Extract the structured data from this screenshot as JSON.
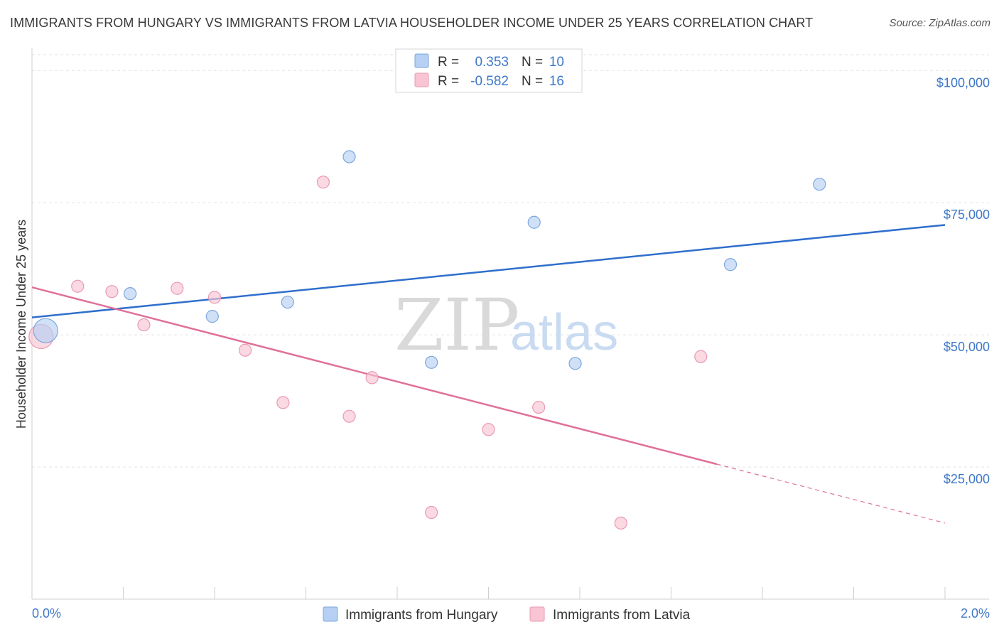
{
  "title": "IMMIGRANTS FROM HUNGARY VS IMMIGRANTS FROM LATVIA HOUSEHOLDER INCOME UNDER 25 YEARS CORRELATION CHART",
  "source": "Source: ZipAtlas.com",
  "watermark": {
    "zip": "ZIP",
    "atlas": "atlas"
  },
  "legend": {
    "rows": [
      {
        "r_label": "R =",
        "r_value": "0.353",
        "n_label": "N =",
        "n_value": "10",
        "color": "#b5d0f3",
        "stroke": "#7da7de"
      },
      {
        "r_label": "R =",
        "r_value": "-0.582",
        "n_label": "N =",
        "n_value": "16",
        "color": "#f9c5d4",
        "stroke": "#e99ab3"
      }
    ]
  },
  "chart_data": {
    "type": "scatter",
    "title": "IMMIGRANTS FROM HUNGARY VS IMMIGRANTS FROM LATVIA HOUSEHOLDER INCOME UNDER 25 YEARS CORRELATION CHART",
    "xlabel": "",
    "ylabel": "Householder Income Under 25 years",
    "xlim": [
      0.0,
      2.0
    ],
    "ylim": [
      0,
      103000
    ],
    "x_tick_labels": [
      "0.0%",
      "2.0%"
    ],
    "y_ticks": [
      25000,
      50000,
      75000,
      100000
    ],
    "y_tick_labels": [
      "$25,000",
      "$50,000",
      "$75,000",
      "$100,000"
    ],
    "grid": true,
    "legend_position": "top-center",
    "series": [
      {
        "name": "Immigrants from Hungary",
        "color": "#b5d0f3",
        "stroke": "#7da7de",
        "line_color": "#2f6fcc",
        "points": [
          {
            "x": 0.03,
            "y": 50800,
            "size": "large"
          },
          {
            "x": 0.215,
            "y": 57800
          },
          {
            "x": 0.395,
            "y": 53500
          },
          {
            "x": 0.56,
            "y": 56200
          },
          {
            "x": 0.695,
            "y": 83700
          },
          {
            "x": 0.875,
            "y": 44800
          },
          {
            "x": 1.1,
            "y": 71300
          },
          {
            "x": 1.19,
            "y": 44600
          },
          {
            "x": 1.53,
            "y": 63300
          },
          {
            "x": 1.725,
            "y": 78500
          }
        ],
        "trend": {
          "x": [
            0.0,
            2.0
          ],
          "y": [
            53300,
            70800
          ],
          "dashed_from": null
        }
      },
      {
        "name": "Immigrants from Latvia",
        "color": "#f9c5d4",
        "stroke": "#e99ab3",
        "line_color": "#e0709a",
        "points": [
          {
            "x": 0.02,
            "y": 49700,
            "size": "large"
          },
          {
            "x": 0.1,
            "y": 59200
          },
          {
            "x": 0.175,
            "y": 58200
          },
          {
            "x": 0.245,
            "y": 51900
          },
          {
            "x": 0.318,
            "y": 58800
          },
          {
            "x": 0.4,
            "y": 57100
          },
          {
            "x": 0.467,
            "y": 47100
          },
          {
            "x": 0.55,
            "y": 37200
          },
          {
            "x": 0.638,
            "y": 78900
          },
          {
            "x": 0.695,
            "y": 34600
          },
          {
            "x": 0.745,
            "y": 41900
          },
          {
            "x": 0.875,
            "y": 16400
          },
          {
            "x": 1.0,
            "y": 32100
          },
          {
            "x": 1.11,
            "y": 36300
          },
          {
            "x": 1.29,
            "y": 14400
          },
          {
            "x": 1.465,
            "y": 45900
          }
        ],
        "trend": {
          "x": [
            0.0,
            2.0
          ],
          "y": [
            59000,
            14400
          ],
          "dashed_from": 1.5
        }
      }
    ]
  }
}
